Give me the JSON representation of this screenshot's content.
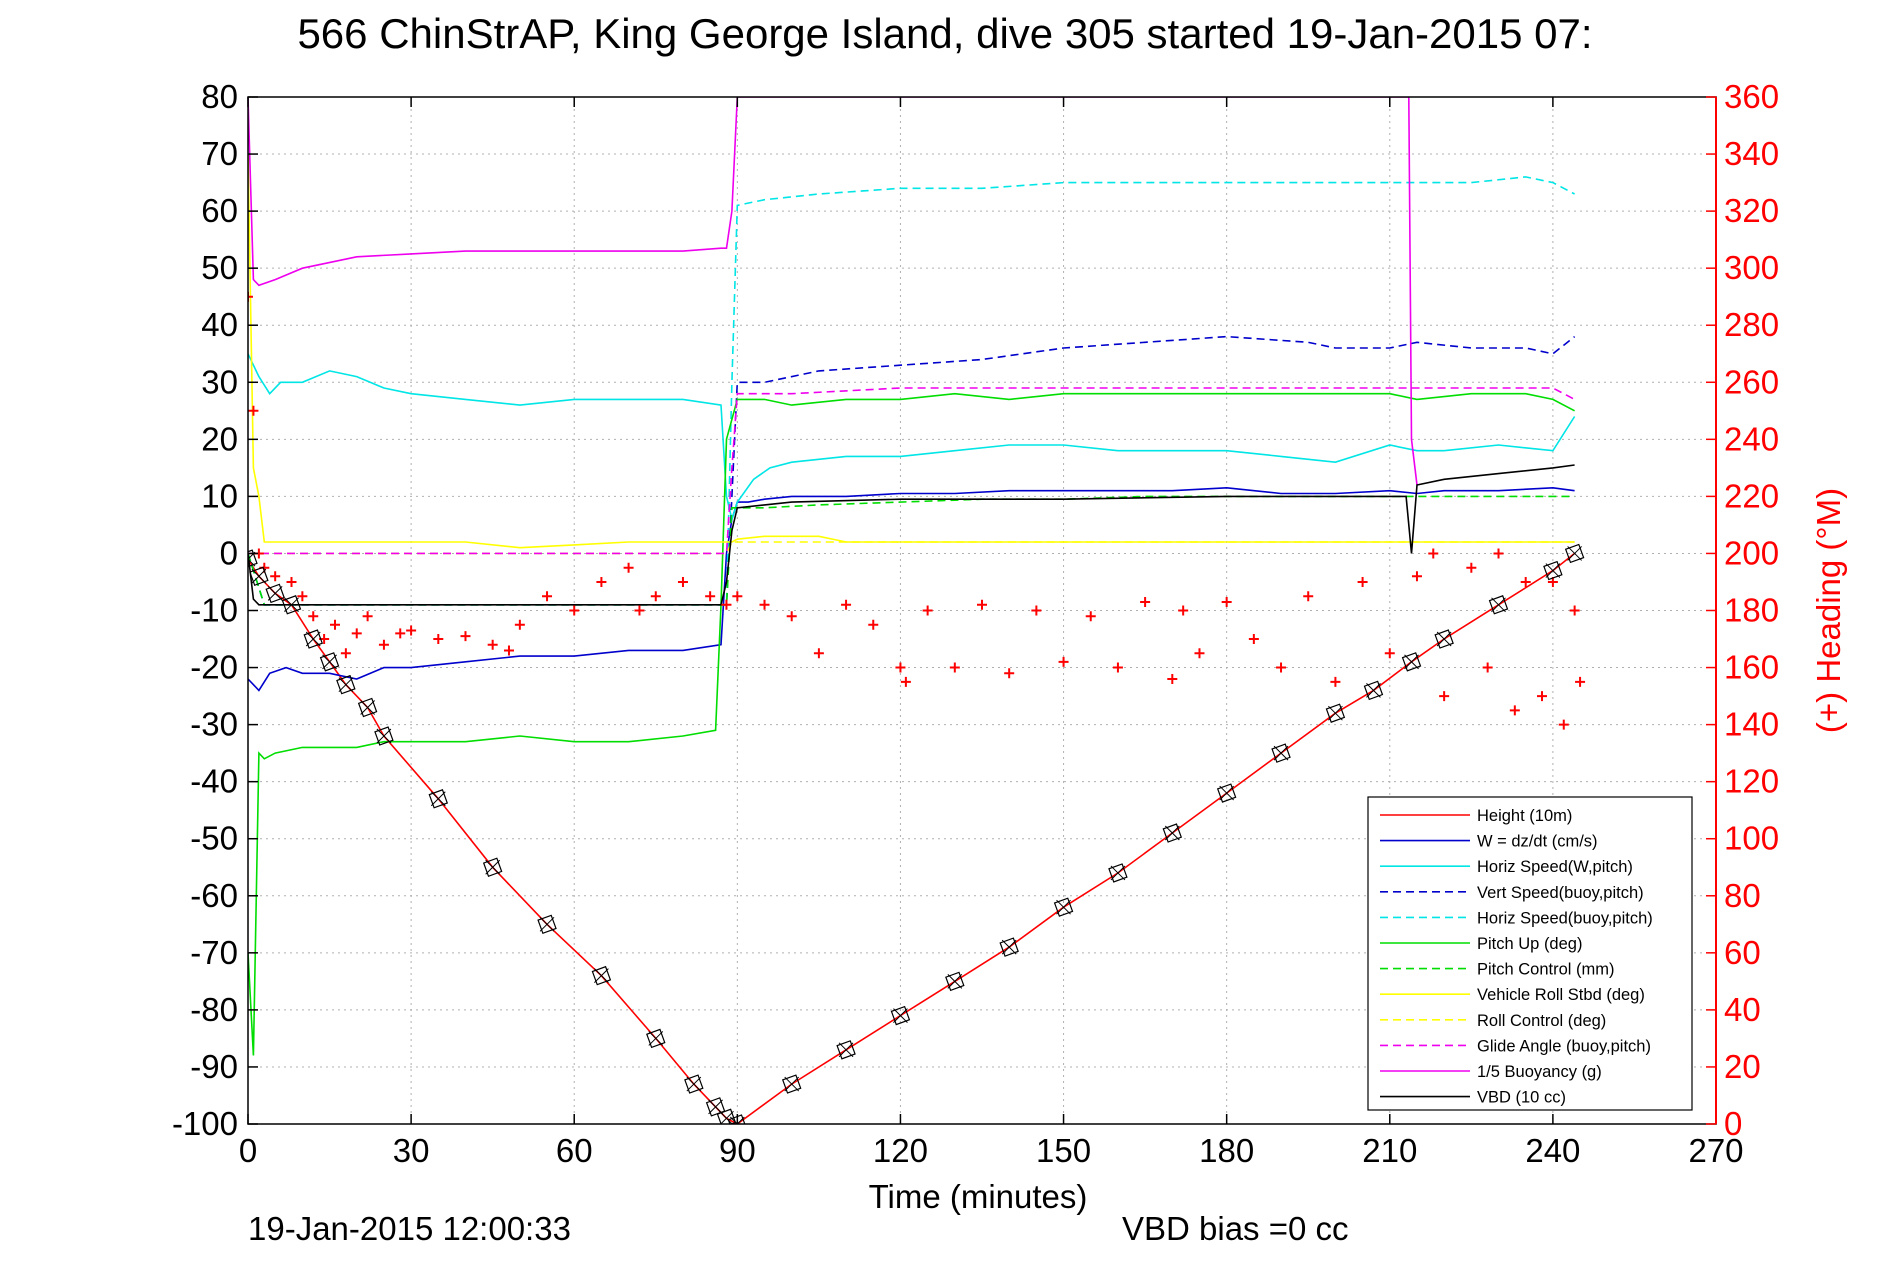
{
  "title": "566 ChinStrAP, King George Island, dive 305 started 19-Jan-2015 07:",
  "footer_left": "19-Jan-2015 12:00:33",
  "footer_right": "VBD bias =0 cc",
  "chart_data": {
    "type": "line",
    "title": "566 ChinStrAP, King George Island, dive 305 started 19-Jan-2015 07:",
    "xlabel": "Time (minutes)",
    "ylabel": "",
    "y2label": "(+) Heading (°M)",
    "xlim": [
      0,
      270
    ],
    "ylim": [
      -100,
      80
    ],
    "y2lim": [
      0,
      360
    ],
    "xticks": [
      0,
      30,
      60,
      90,
      120,
      150,
      180,
      210,
      240,
      270
    ],
    "yticks": [
      -100,
      -90,
      -80,
      -70,
      -60,
      -50,
      -40,
      -30,
      -20,
      -10,
      0,
      10,
      20,
      30,
      40,
      50,
      60,
      70,
      80
    ],
    "y2ticks": [
      0,
      20,
      40,
      60,
      80,
      100,
      120,
      140,
      160,
      180,
      200,
      220,
      240,
      260,
      280,
      300,
      320,
      340,
      360
    ],
    "grid": true,
    "legend_position": "bottom-right",
    "legend_labels": [
      "Height (10m)",
      "W = dz/dt (cm/s)",
      "Horiz Speed(W,pitch)",
      "Vert Speed(buoy,pitch)",
      "Horiz Speed(buoy,pitch)",
      "Pitch Up (deg)",
      "Pitch Control (mm)",
      "Vehicle Roll Stbd (deg)",
      "Roll Control (deg)",
      "Glide Angle (buoy,pitch)",
      "1/5 Buoyancy (g)",
      "VBD (10 cc)"
    ],
    "colors": {
      "red": "#ff0000",
      "blue": "#0000cc",
      "cyan": "#00e5e5",
      "green": "#00dd00",
      "yellow": "#ffff00",
      "magenta": "#ee00ee",
      "black": "#000000",
      "grid": "#b0b0b0",
      "right_axis": "#ff0000"
    },
    "series": [
      {
        "name": "Height (10m)",
        "color": "#ff0000",
        "dash": "solid",
        "axis": "left",
        "x": [
          0,
          2,
          5,
          8,
          12,
          15,
          18,
          22,
          25,
          35,
          45,
          55,
          65,
          75,
          82,
          86,
          88,
          90,
          100,
          110,
          120,
          130,
          140,
          150,
          160,
          170,
          180,
          190,
          200,
          207,
          214,
          220,
          230,
          240,
          244
        ],
        "y": [
          -1,
          -4,
          -7,
          -9,
          -15,
          -19,
          -23,
          -27,
          -32,
          -43,
          -55,
          -65,
          -74,
          -85,
          -93,
          -97,
          -99,
          -100,
          -93,
          -87,
          -81,
          -75,
          -69,
          -62,
          -56,
          -49,
          -42,
          -35,
          -28,
          -24,
          -19,
          -15,
          -9,
          -3,
          0
        ]
      },
      {
        "name": "W = dz/dt (cm/s)",
        "color": "#0000cc",
        "dash": "solid",
        "axis": "left",
        "x": [
          0,
          2,
          4,
          7,
          10,
          15,
          20,
          25,
          30,
          40,
          50,
          60,
          70,
          80,
          87,
          88,
          89,
          90,
          92,
          95,
          100,
          110,
          120,
          130,
          140,
          150,
          160,
          170,
          180,
          190,
          200,
          210,
          215,
          220,
          230,
          240,
          244
        ],
        "y": [
          -22,
          -24,
          -21,
          -20,
          -21,
          -21,
          -22,
          -20,
          -20,
          -19,
          -18,
          -18,
          -17,
          -17,
          -16,
          0,
          6,
          9,
          9,
          9.5,
          10,
          10,
          10.5,
          10.5,
          11,
          11,
          11,
          11,
          11.5,
          10.5,
          10.5,
          11,
          10.5,
          11,
          11,
          11.5,
          11
        ]
      },
      {
        "name": "Horiz Speed(W,pitch)",
        "color": "#00e5e5",
        "dash": "solid",
        "axis": "left",
        "x": [
          0,
          2,
          4,
          6,
          10,
          15,
          20,
          25,
          30,
          40,
          50,
          60,
          70,
          80,
          87,
          88,
          89,
          90,
          93,
          96,
          100,
          110,
          120,
          130,
          140,
          150,
          160,
          170,
          180,
          190,
          200,
          210,
          215,
          220,
          230,
          240,
          244
        ],
        "y": [
          35,
          31,
          28,
          30,
          30,
          32,
          31,
          29,
          28,
          27,
          26,
          27,
          27,
          27,
          26,
          10,
          6,
          9,
          13,
          15,
          16,
          17,
          17,
          18,
          19,
          19,
          18,
          18,
          18,
          17,
          16,
          19,
          18,
          18,
          19,
          18,
          24
        ]
      },
      {
        "name": "Vert Speed(buoy,pitch)",
        "color": "#0000cc",
        "dash": "dashed",
        "axis": "left",
        "x": [
          0,
          3,
          6,
          10,
          88,
          89,
          90,
          95,
          105,
          120,
          135,
          150,
          165,
          180,
          195,
          200,
          210,
          215,
          225,
          235,
          240,
          244
        ],
        "y": [
          0,
          -9,
          -9,
          -9,
          -9,
          10,
          30,
          30,
          32,
          33,
          34,
          36,
          37,
          38,
          37,
          36,
          36,
          37,
          36,
          36,
          35,
          38
        ]
      },
      {
        "name": "Horiz Speed(buoy,pitch)",
        "color": "#00e5e5",
        "dash": "dashed",
        "axis": "left",
        "x": [
          0,
          3,
          6,
          10,
          88,
          89,
          90,
          95,
          105,
          120,
          135,
          150,
          165,
          180,
          195,
          210,
          215,
          225,
          235,
          240,
          244
        ],
        "y": [
          0,
          -9,
          -9,
          -9,
          -9,
          30,
          61,
          62,
          63,
          64,
          64,
          65,
          65,
          65,
          65,
          65,
          65,
          65,
          66,
          65,
          63
        ]
      },
      {
        "name": "Pitch Up (deg)",
        "color": "#00dd00",
        "dash": "solid",
        "axis": "left",
        "x": [
          0,
          1,
          2,
          3,
          5,
          10,
          15,
          20,
          25,
          30,
          40,
          50,
          60,
          70,
          80,
          86,
          87,
          88,
          90,
          95,
          100,
          110,
          120,
          130,
          140,
          150,
          160,
          170,
          180,
          190,
          200,
          210,
          215,
          225,
          235,
          240,
          244
        ],
        "y": [
          -70,
          -88,
          -35,
          -36,
          -35,
          -34,
          -34,
          -34,
          -33,
          -33,
          -33,
          -32,
          -33,
          -33,
          -32,
          -31,
          -9,
          20,
          27,
          27,
          26,
          27,
          27,
          28,
          27,
          28,
          28,
          28,
          28,
          28,
          28,
          28,
          27,
          28,
          28,
          27,
          25
        ]
      },
      {
        "name": "Pitch Control (mm)",
        "color": "#00dd00",
        "dash": "dashed",
        "axis": "left",
        "x": [
          0,
          3,
          6,
          10,
          88,
          89,
          90,
          95,
          105,
          120,
          135,
          150,
          165,
          180,
          195,
          210,
          225,
          240,
          244
        ],
        "y": [
          0,
          -9,
          -9,
          -9,
          -9,
          8,
          8,
          8,
          8.5,
          9,
          9.5,
          9.5,
          10,
          10,
          10,
          10,
          10,
          10,
          10
        ]
      },
      {
        "name": "Vehicle Roll Stbd (deg)",
        "color": "#ffff00",
        "dash": "solid",
        "axis": "left",
        "x": [
          0,
          1,
          2,
          3,
          10,
          20,
          30,
          40,
          50,
          60,
          70,
          80,
          87,
          88,
          89,
          90,
          95,
          100,
          105,
          110,
          120,
          130,
          140,
          150,
          160,
          170,
          180,
          190,
          200,
          210,
          215,
          225,
          235,
          240,
          244
        ],
        "y": [
          70,
          15,
          10,
          2,
          2,
          2,
          2,
          2,
          1,
          1.5,
          2,
          2,
          2,
          2,
          2,
          2.5,
          3,
          3,
          3,
          2,
          2,
          2,
          2,
          2,
          2,
          2,
          2,
          2,
          2,
          2,
          2,
          2,
          2,
          2,
          2
        ]
      },
      {
        "name": "Roll Control (deg)",
        "color": "#ffff00",
        "dash": "dashed",
        "axis": "left",
        "x": [
          0,
          10,
          50,
          88,
          89,
          90,
          120,
          160,
          210,
          220,
          240,
          244
        ],
        "y": [
          0,
          0,
          0,
          0,
          2,
          2,
          2,
          2,
          2,
          2,
          2,
          2
        ]
      },
      {
        "name": "Glide Angle (buoy,pitch)",
        "color": "#ee00ee",
        "dash": "dashed",
        "axis": "left",
        "x": [
          0,
          10,
          40,
          88,
          89,
          90,
          100,
          120,
          140,
          160,
          180,
          200,
          210,
          220,
          240,
          244
        ],
        "y": [
          0,
          0,
          0,
          0,
          15,
          28,
          28,
          29,
          29,
          29,
          29,
          29,
          29,
          29,
          29,
          27
        ]
      },
      {
        "name": "1/5 Buoyancy (g)",
        "color": "#ee00ee",
        "dash": "solid",
        "axis": "left",
        "x": [
          0,
          1,
          2,
          5,
          10,
          20,
          30,
          40,
          50,
          60,
          70,
          80,
          87,
          88,
          89,
          90,
          213,
          213.5,
          214,
          215
        ],
        "y": [
          80,
          48,
          47,
          48,
          50,
          52,
          52.5,
          53,
          53,
          53,
          53,
          53,
          53.5,
          53.5,
          60,
          80,
          80,
          80,
          20,
          12
        ]
      },
      {
        "name": "VBD (10 cc)",
        "color": "#000000",
        "dash": "solid",
        "axis": "left",
        "x": [
          0,
          1,
          2,
          3,
          87,
          88,
          89,
          90,
          95,
          100,
          120,
          150,
          180,
          195,
          210,
          212,
          213,
          214,
          215,
          220,
          230,
          240,
          244
        ],
        "y": [
          0,
          -8,
          -9,
          -9,
          -9,
          -5,
          4,
          8,
          8.5,
          9,
          9.5,
          9.5,
          10,
          10,
          10,
          10,
          10,
          0,
          12,
          13,
          14,
          15,
          15.5
        ]
      },
      {
        "name": "Heading",
        "color": "#ff0000",
        "dash": "markers",
        "axis": "right",
        "x": [
          0,
          1,
          2,
          3,
          5,
          8,
          10,
          12,
          14,
          16,
          18,
          20,
          22,
          25,
          28,
          30,
          35,
          40,
          45,
          48,
          50,
          55,
          60,
          65,
          70,
          72,
          75,
          80,
          85,
          88,
          90,
          95,
          100,
          105,
          110,
          115,
          120,
          121,
          125,
          130,
          135,
          140,
          145,
          150,
          155,
          160,
          165,
          170,
          172,
          175,
          180,
          185,
          190,
          195,
          200,
          205,
          210,
          215,
          218,
          220,
          225,
          228,
          230,
          233,
          235,
          238,
          240,
          242,
          244,
          245
        ],
        "y": [
          290,
          250,
          200,
          195,
          192,
          190,
          185,
          178,
          170,
          175,
          165,
          172,
          178,
          168,
          172,
          173,
          170,
          171,
          168,
          166,
          175,
          185,
          180,
          190,
          195,
          180,
          185,
          190,
          185,
          182,
          185,
          182,
          178,
          165,
          182,
          175,
          160,
          155,
          180,
          160,
          182,
          158,
          180,
          162,
          178,
          160,
          183,
          156,
          180,
          165,
          183,
          170,
          160,
          185,
          155,
          190,
          165,
          192,
          200,
          150,
          195,
          160,
          200,
          145,
          190,
          150,
          190,
          140,
          180,
          155
        ]
      }
    ],
    "annotations": [
      {
        "type": "markers",
        "series": "Height (10m)",
        "marker": "square-with-x and triangle"
      }
    ]
  }
}
